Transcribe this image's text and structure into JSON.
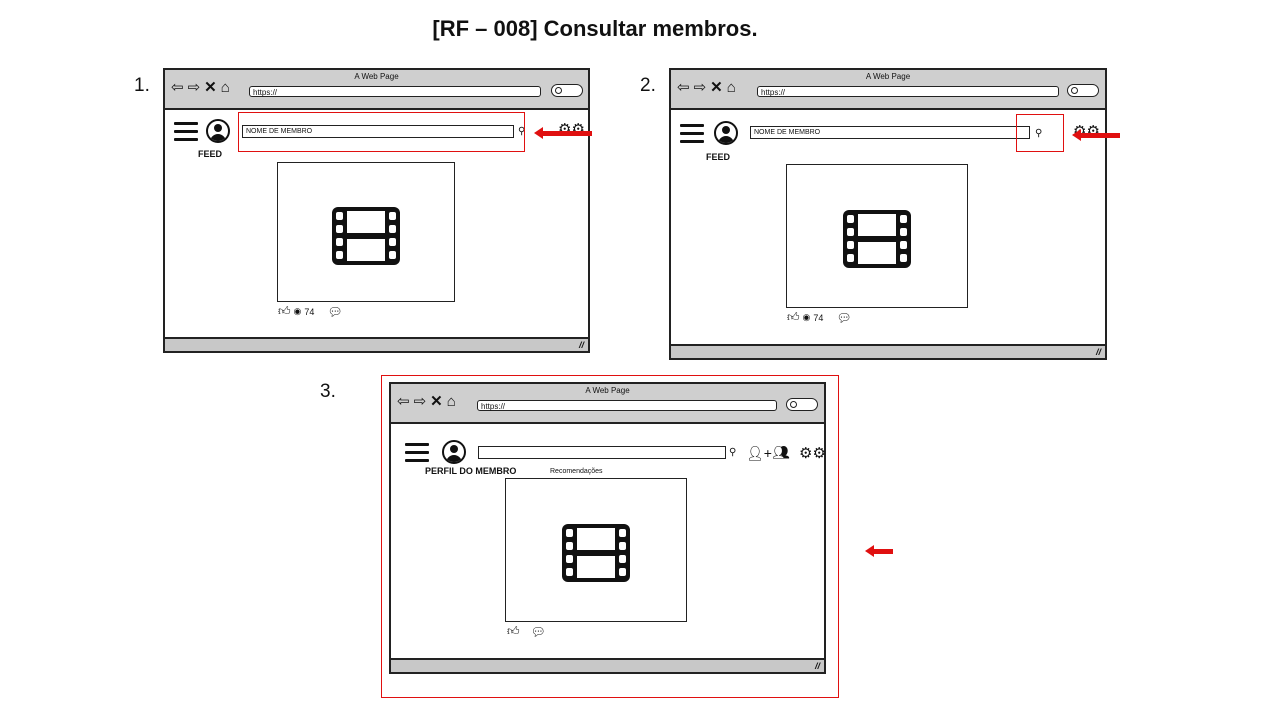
{
  "page": {
    "title": "[RF – 008] Consultar membros."
  },
  "mockups": [
    {
      "number": "1.",
      "window_title": "A Web Page",
      "url": "https://",
      "search_value": "NOME DE MEMBRO",
      "label": "FEED",
      "likes": "74"
    },
    {
      "number": "2.",
      "window_title": "A Web Page",
      "url": "https://",
      "search_value": "NOME DE MEMBRO",
      "label": "FEED",
      "likes": "74"
    },
    {
      "number": "3.",
      "window_title": "A Web Page",
      "url": "https://",
      "search_value": "",
      "label": "PERFIL DO MEMBRO",
      "section": "Recomendações"
    }
  ],
  "colors": {
    "highlight": "#e01010",
    "chrome": "#cfcfcf"
  },
  "icons": [
    "back-arrow-icon",
    "forward-arrow-icon",
    "close-icon",
    "home-icon",
    "search-icon",
    "hamburger-menu-icon",
    "avatar-icon",
    "gear-icon",
    "film-icon",
    "thumbs-up-icon",
    "user-icon",
    "comment-icon",
    "add-user-icon",
    "group-icon"
  ]
}
